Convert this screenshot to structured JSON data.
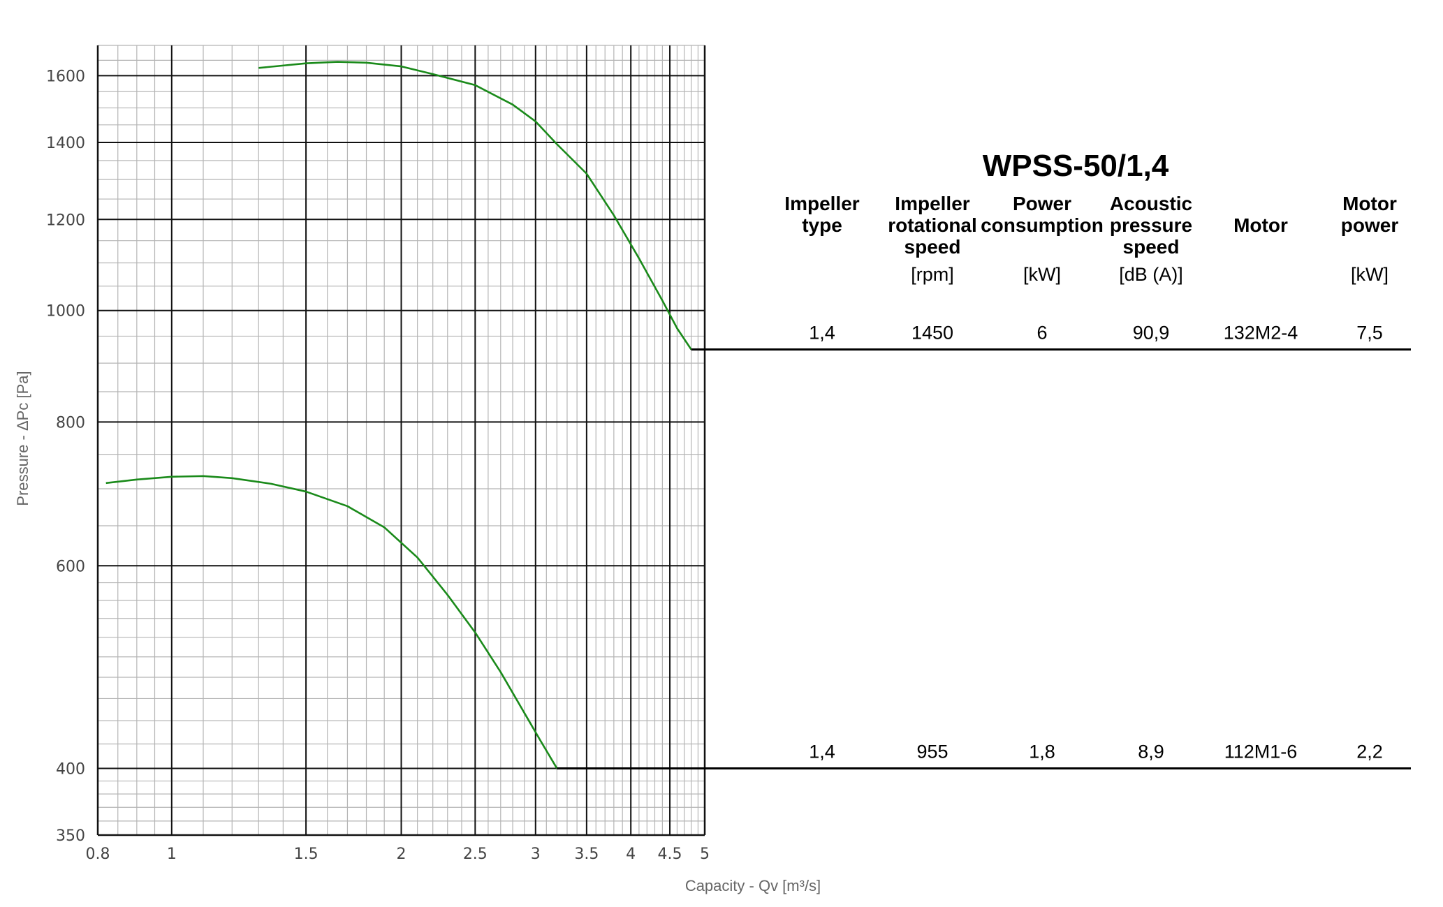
{
  "chart_data": {
    "type": "line",
    "model": "WPSS-50/1,4",
    "xlabel": "Capacity - Qv [m³/s]",
    "ylabel": "Pressure - ΔPc [Pa]",
    "x_scale": "log",
    "y_scale": "log",
    "xlim": [
      0.8,
      5
    ],
    "ylim": [
      350,
      1700
    ],
    "x_ticks": [
      "0.8",
      "1",
      "1.5",
      "2",
      "2.5",
      "3",
      "3.5",
      "4",
      "4.5",
      "5"
    ],
    "y_ticks": [
      "350",
      "400",
      "600",
      "800",
      "1000",
      "1200",
      "1400",
      "1600"
    ],
    "grid": true,
    "line_color": "#1a8a1a",
    "series": [
      {
        "x": [
          1.3,
          1.5,
          1.65,
          1.8,
          2.0,
          2.2,
          2.5,
          2.8,
          3.0,
          3.2,
          3.5,
          3.8,
          4.1,
          4.4,
          4.6,
          4.8
        ],
        "y": [
          1625,
          1640,
          1645,
          1642,
          1630,
          1605,
          1570,
          1510,
          1460,
          1395,
          1315,
          1210,
          1110,
          1020,
          965,
          925
        ]
      },
      {
        "x": [
          0.82,
          0.9,
          1.0,
          1.1,
          1.2,
          1.35,
          1.5,
          1.7,
          1.9,
          2.1,
          2.3,
          2.5,
          2.7,
          2.9,
          3.05,
          3.2
        ],
        "y": [
          708,
          713,
          717,
          718,
          715,
          707,
          696,
          676,
          648,
          610,
          566,
          525,
          485,
          447,
          422,
          400
        ]
      }
    ],
    "table": {
      "headers": [
        {
          "lines": [
            "Impeller",
            "type"
          ],
          "unit": ""
        },
        {
          "lines": [
            "Impeller",
            "rotational",
            "speed"
          ],
          "unit": "[rpm]"
        },
        {
          "lines": [
            "Power",
            "consumption"
          ],
          "unit": "[kW]"
        },
        {
          "lines": [
            "Acoustic",
            "pressure",
            "speed"
          ],
          "unit": "[dB (A)]"
        },
        {
          "lines": [
            "Motor"
          ],
          "unit": ""
        },
        {
          "lines": [
            "Motor",
            "power"
          ],
          "unit": "[kW]"
        }
      ],
      "rows": [
        {
          "pressure": 925,
          "values": [
            "1,4",
            "1450",
            "6",
            "90,9",
            "132M2-4",
            "7,5"
          ]
        },
        {
          "pressure": 400,
          "values": [
            "1,4",
            "955",
            "1,8",
            "8,9",
            "112M1-6",
            "2,2"
          ]
        }
      ]
    }
  }
}
